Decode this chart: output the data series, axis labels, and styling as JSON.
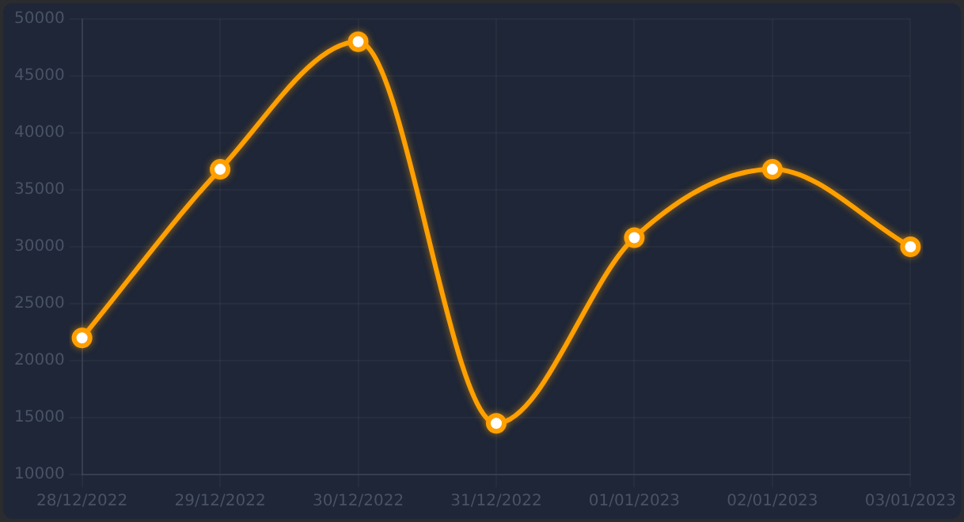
{
  "chart_data": {
    "type": "line",
    "categories": [
      "28/12/2022",
      "29/12/2022",
      "30/12/2022",
      "31/12/2022",
      "01/01/2023",
      "02/01/2023",
      "03/01/2023"
    ],
    "series": [
      {
        "color": "#ffa000",
        "values": [
          22000,
          36800,
          48000,
          14500,
          30800,
          36800,
          30000
        ]
      }
    ],
    "ylim": [
      10000,
      50000
    ],
    "yticks": [
      10000,
      15000,
      20000,
      25000,
      30000,
      35000,
      40000,
      45000,
      50000
    ],
    "grid": true,
    "marker": "circle",
    "legend": false
  }
}
